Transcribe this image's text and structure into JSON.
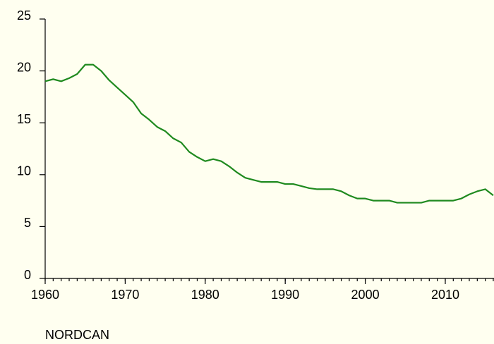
{
  "chart_data": {
    "type": "line",
    "annotation": "NORDCAN",
    "x": [
      1960,
      1961,
      1962,
      1963,
      1964,
      1965,
      1966,
      1967,
      1968,
      1969,
      1970,
      1971,
      1972,
      1973,
      1974,
      1975,
      1976,
      1977,
      1978,
      1979,
      1980,
      1981,
      1982,
      1983,
      1984,
      1985,
      1986,
      1987,
      1988,
      1989,
      1990,
      1991,
      1992,
      1993,
      1994,
      1995,
      1996,
      1997,
      1998,
      1999,
      2000,
      2001,
      2002,
      2003,
      2004,
      2005,
      2006,
      2007,
      2008,
      2009,
      2010,
      2011,
      2012,
      2013,
      2014,
      2015,
      2016
    ],
    "series": [
      {
        "color": "#1f8a1f",
        "values": [
          19.0,
          19.2,
          19.0,
          19.3,
          19.7,
          20.6,
          20.6,
          20.0,
          19.1,
          18.4,
          17.7,
          17.0,
          15.9,
          15.3,
          14.6,
          14.2,
          13.5,
          13.1,
          12.2,
          11.7,
          11.3,
          11.5,
          11.3,
          10.8,
          10.2,
          9.7,
          9.5,
          9.3,
          9.3,
          9.3,
          9.1,
          9.1,
          8.9,
          8.7,
          8.6,
          8.6,
          8.6,
          8.4,
          8.0,
          7.7,
          7.7,
          7.5,
          7.5,
          7.5,
          7.3,
          7.3,
          7.3,
          7.3,
          7.5,
          7.5,
          7.5,
          7.5,
          7.7,
          8.1,
          8.4,
          8.6,
          8.0
        ]
      }
    ],
    "xlim": [
      1960,
      2016
    ],
    "xticks": [
      1960,
      1970,
      1980,
      1990,
      2000,
      2010
    ],
    "ylim": [
      0,
      25
    ],
    "yticks": [
      0,
      5,
      10,
      15,
      20,
      25
    ]
  }
}
